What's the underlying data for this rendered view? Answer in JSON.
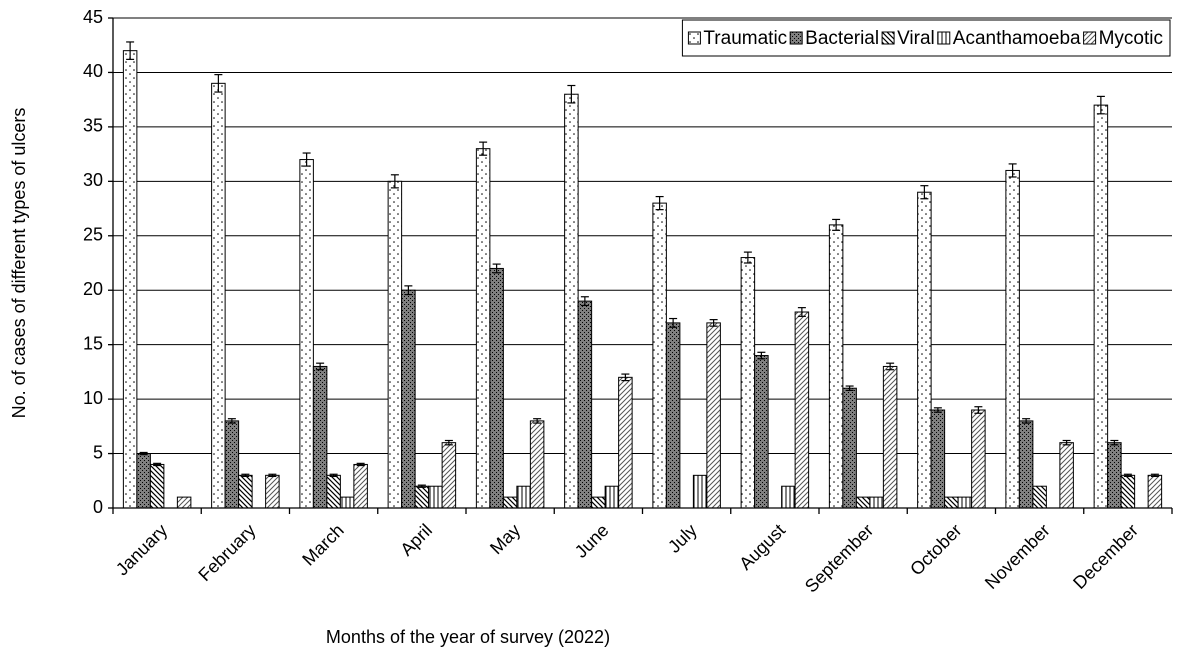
{
  "chart_data": {
    "type": "bar",
    "x_label": "Months of the year of survey (2022)",
    "y_label": "No. of cases of different types of ulcers",
    "categories": [
      "January",
      "February",
      "March",
      "April",
      "May",
      "June",
      "July",
      "August",
      "September",
      "October",
      "November",
      "December"
    ],
    "series": [
      {
        "name": "Traumatic",
        "color": "#ffffff",
        "pattern": "dots",
        "values": [
          42,
          39,
          32,
          30,
          33,
          38,
          28,
          23,
          26,
          29,
          31,
          37
        ],
        "errors": [
          0.8,
          0.8,
          0.6,
          0.6,
          0.6,
          0.8,
          0.6,
          0.5,
          0.5,
          0.6,
          0.6,
          0.8
        ]
      },
      {
        "name": "Bacterial",
        "color": "#7f7f7f",
        "pattern": "dark-dots",
        "values": [
          5,
          8,
          13,
          20,
          22,
          19,
          17,
          14,
          11,
          9,
          8,
          6
        ],
        "errors": [
          0.1,
          0.2,
          0.3,
          0.4,
          0.4,
          0.4,
          0.4,
          0.3,
          0.2,
          0.2,
          0.2,
          0.2
        ]
      },
      {
        "name": "Viral",
        "color": "#ffffff",
        "pattern": "diagonal",
        "values": [
          4,
          3,
          3,
          2,
          1,
          1,
          0,
          0,
          1,
          1,
          2,
          3
        ],
        "errors": [
          0.1,
          0.1,
          0.1,
          0.1,
          0,
          0,
          0,
          0,
          0,
          0,
          0,
          0.1
        ]
      },
      {
        "name": "Acanthamoeba",
        "color": "#ffffff",
        "pattern": "vertical",
        "values": [
          0,
          0,
          1,
          2,
          2,
          2,
          3,
          2,
          1,
          1,
          0,
          0
        ],
        "errors": [
          0,
          0,
          0,
          0,
          0,
          0,
          0,
          0,
          0,
          0,
          0,
          0
        ]
      },
      {
        "name": "Mycotic",
        "color": "#ffffff",
        "pattern": "fine-diagonal",
        "values": [
          1,
          3,
          4,
          6,
          8,
          12,
          17,
          18,
          13,
          9,
          6,
          3
        ],
        "errors": [
          0,
          0.1,
          0.1,
          0.2,
          0.2,
          0.3,
          0.3,
          0.4,
          0.3,
          0.3,
          0.2,
          0.1
        ]
      }
    ],
    "ylim": [
      0,
      45
    ],
    "yticks": [
      0,
      5,
      10,
      15,
      20,
      25,
      30,
      35,
      40,
      45
    ],
    "grid": true,
    "legend": "top-right"
  }
}
